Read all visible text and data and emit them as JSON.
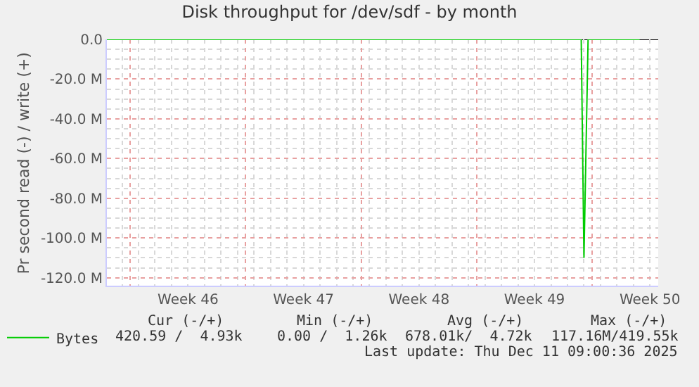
{
  "chart_data": {
    "type": "line",
    "title": "Disk throughput for /dev/sdf - by month",
    "ylabel": "Pr second read (-) / write (+)",
    "x": [
      "2025-11-09T02:00",
      "2025-12-07T20:00",
      "2025-12-08T00:00",
      "2025-12-08T06:00",
      "2025-12-11T09:00"
    ],
    "series": [
      {
        "name": "Bytes",
        "color": "#00cc00",
        "values": [
          0,
          0,
          -110,
          0,
          0
        ]
      }
    ],
    "xlim": [
      "2025-11-09T02:00",
      "2025-12-12T12:00"
    ],
    "xticks": [
      {
        "value": "2025-11-14",
        "label": "Week 46"
      },
      {
        "value": "2025-11-21",
        "label": "Week 47"
      },
      {
        "value": "2025-11-28",
        "label": "Week 48"
      },
      {
        "value": "2025-12-05",
        "label": "Week 49"
      },
      {
        "value": "2025-12-12",
        "label": "Week 50"
      }
    ],
    "ylim": [
      -124,
      0
    ],
    "yticks": [
      {
        "value": 0,
        "label": "0.0"
      },
      {
        "value": -20,
        "label": "-20.0 M"
      },
      {
        "value": -40,
        "label": "-40.0 M"
      },
      {
        "value": -60,
        "label": "-60.0 M"
      },
      {
        "value": -80,
        "label": "-80.0 M"
      },
      {
        "value": -100,
        "label": "-100.0 M"
      },
      {
        "value": -120,
        "label": "-120.0 M"
      }
    ],
    "grid": true,
    "legend": "bottom left",
    "marker": "none",
    "line_style": "solid",
    "annotations": [
      "Cur (-/+)",
      "Min (-/+)",
      "Avg (-/+)",
      "Max (-/+)",
      "420.59 /  4.93k",
      "0.00 /  1.26k",
      "678.01k/  4.72k",
      "117.16M/419.55k",
      "Last update: Thu Dec 11 09:00:36 2025"
    ]
  }
}
